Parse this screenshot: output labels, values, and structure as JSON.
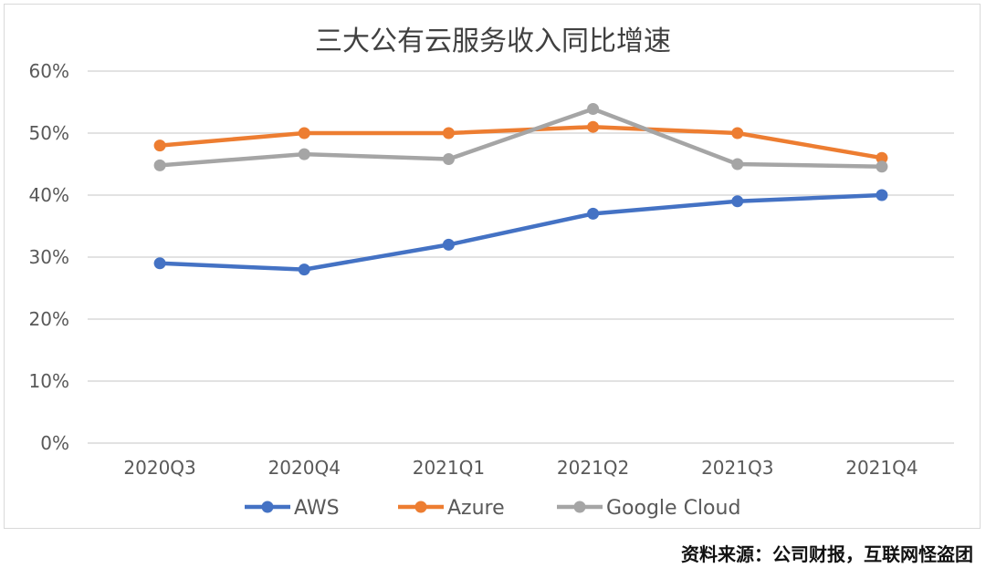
{
  "chart_data": {
    "type": "line",
    "title": "三大公有云服务收入同比增速",
    "categories": [
      "2020Q3",
      "2020Q4",
      "2021Q1",
      "2021Q2",
      "2021Q3",
      "2021Q4"
    ],
    "series": [
      {
        "name": "AWS",
        "color": "#4472C4",
        "values": [
          29,
          28,
          32,
          37,
          39,
          40
        ]
      },
      {
        "name": "Azure",
        "color": "#ED7D31",
        "values": [
          48,
          50,
          50,
          51,
          50,
          46
        ]
      },
      {
        "name": "Google Cloud",
        "color": "#A5A5A5",
        "values": [
          44.8,
          46.6,
          45.8,
          53.9,
          45.0,
          44.6
        ]
      }
    ],
    "ylim": [
      0,
      60
    ],
    "yticks": [
      "0%",
      "10%",
      "20%",
      "30%",
      "40%",
      "50%",
      "60%"
    ],
    "grid": true,
    "legend": "bottom"
  },
  "source_note": "资料来源：公司财报，互联网怪盗团"
}
